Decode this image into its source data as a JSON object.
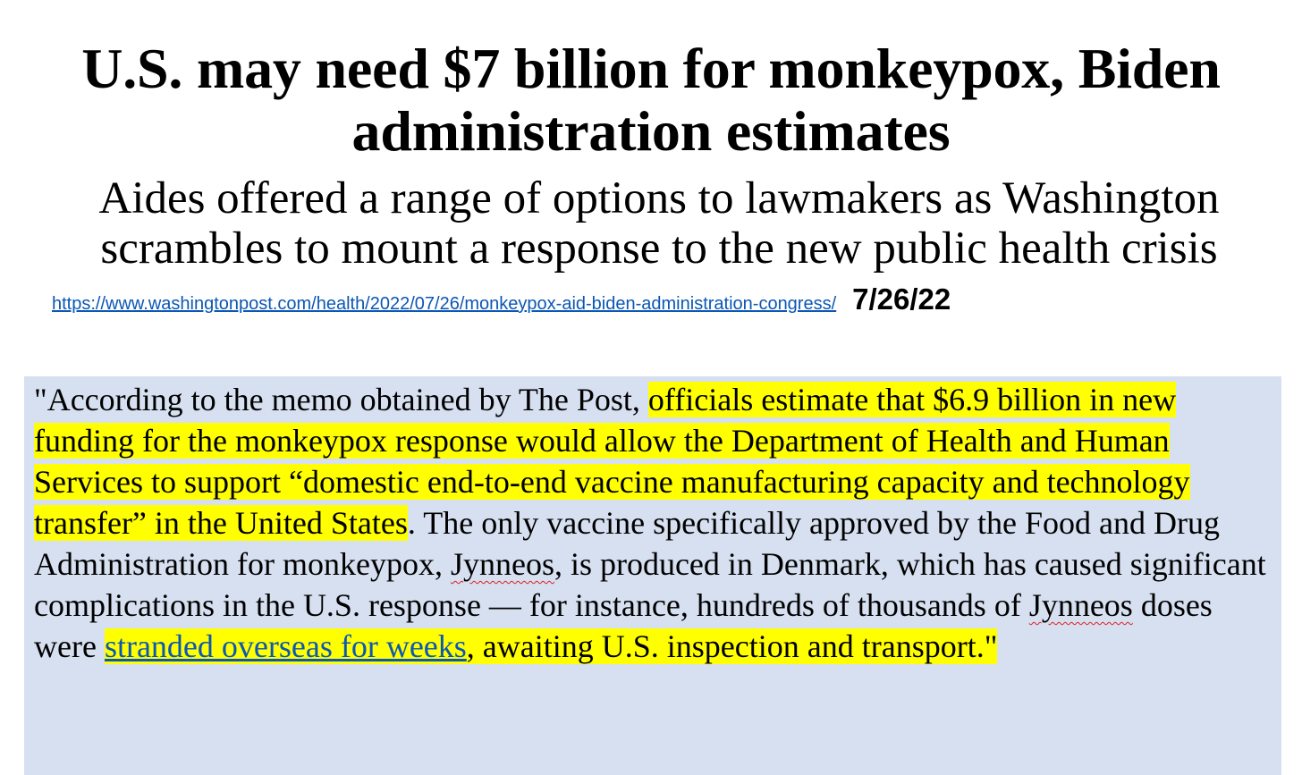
{
  "headline": {
    "line1": "U.S. may need $7 billion for monkeypox, Biden",
    "line2": "administration estimates"
  },
  "subhead": {
    "line1": "Aides offered a range of options to lawmakers as Washington",
    "line2": "scrambles to mount a response to the new public health crisis"
  },
  "source": {
    "url": "https://www.washingtonpost.com/health/2022/07/26/monkeypox-aid-biden-administration-congress/",
    "date": "7/26/22"
  },
  "quote": {
    "open": "\"According to the memo obtained by The Post, ",
    "highlight1": "officials estimate that $6.9 billion in new funding for the monkeypox response would allow the Department of Health and Human Services to support “domestic end-to-end vaccine manufacturing capacity and technology transfer” in the United States",
    "after1": ". The only vaccine specifically approved by the Food and Drug Administration for monkeypox, ",
    "jynneos1": "Jynneos",
    "after2": ", is produced in Denmark, which has caused significant complications in the U.S. response — for instance, hundreds of thousands of ",
    "jynneos2": "Jynneos",
    "after3": " doses were ",
    "link_text": "stranded overseas for weeks",
    "highlight2": ", awaiting U.S. inspection and transport.\""
  },
  "colors": {
    "highlight": "#ffff00",
    "quote_background": "#d6e0f0",
    "link": "#0b57b5"
  }
}
